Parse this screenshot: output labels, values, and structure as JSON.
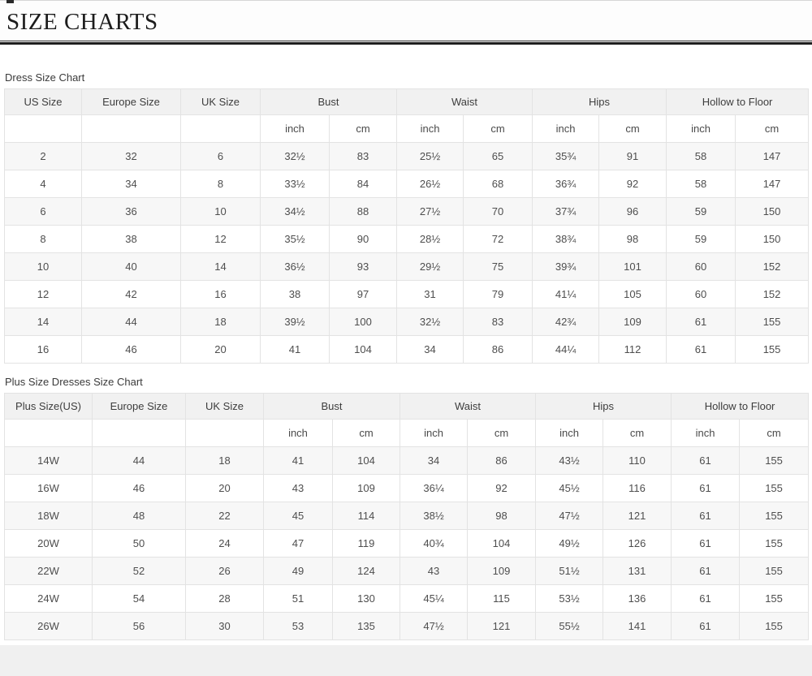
{
  "title": "SIZE CHARTS",
  "tables": [
    {
      "caption": "Dress Size Chart",
      "id_columns": [
        "US Size",
        "Europe Size",
        "UK Size"
      ],
      "measure_groups": [
        "Bust",
        "Waist",
        "Hips",
        "Hollow to Floor"
      ],
      "unit_labels": [
        "inch",
        "cm"
      ],
      "rows": [
        [
          "2",
          "32",
          "6",
          "32½",
          "83",
          "25½",
          "65",
          "35¾",
          "91",
          "58",
          "147"
        ],
        [
          "4",
          "34",
          "8",
          "33½",
          "84",
          "26½",
          "68",
          "36¾",
          "92",
          "58",
          "147"
        ],
        [
          "6",
          "36",
          "10",
          "34½",
          "88",
          "27½",
          "70",
          "37¾",
          "96",
          "59",
          "150"
        ],
        [
          "8",
          "38",
          "12",
          "35½",
          "90",
          "28½",
          "72",
          "38¾",
          "98",
          "59",
          "150"
        ],
        [
          "10",
          "40",
          "14",
          "36½",
          "93",
          "29½",
          "75",
          "39¾",
          "101",
          "60",
          "152"
        ],
        [
          "12",
          "42",
          "16",
          "38",
          "97",
          "31",
          "79",
          "41¼",
          "105",
          "60",
          "152"
        ],
        [
          "14",
          "44",
          "18",
          "39½",
          "100",
          "32½",
          "83",
          "42¾",
          "109",
          "61",
          "155"
        ],
        [
          "16",
          "46",
          "20",
          "41",
          "104",
          "34",
          "86",
          "44¼",
          "112",
          "61",
          "155"
        ]
      ]
    },
    {
      "caption": "Plus Size Dresses Size Chart",
      "id_columns": [
        "Plus Size(US)",
        "Europe Size",
        "UK Size"
      ],
      "measure_groups": [
        "Bust",
        "Waist",
        "Hips",
        "Hollow to Floor"
      ],
      "unit_labels": [
        "inch",
        "cm"
      ],
      "rows": [
        [
          "14W",
          "44",
          "18",
          "41",
          "104",
          "34",
          "86",
          "43½",
          "110",
          "61",
          "155"
        ],
        [
          "16W",
          "46",
          "20",
          "43",
          "109",
          "36¼",
          "92",
          "45½",
          "116",
          "61",
          "155"
        ],
        [
          "18W",
          "48",
          "22",
          "45",
          "114",
          "38½",
          "98",
          "47½",
          "121",
          "61",
          "155"
        ],
        [
          "20W",
          "50",
          "24",
          "47",
          "119",
          "40¾",
          "104",
          "49½",
          "126",
          "61",
          "155"
        ],
        [
          "22W",
          "52",
          "26",
          "49",
          "124",
          "43",
          "109",
          "51½",
          "131",
          "61",
          "155"
        ],
        [
          "24W",
          "54",
          "28",
          "51",
          "130",
          "45¼",
          "115",
          "53½",
          "136",
          "61",
          "155"
        ],
        [
          "26W",
          "56",
          "30",
          "53",
          "135",
          "47½",
          "121",
          "55½",
          "141",
          "61",
          "155"
        ]
      ]
    }
  ],
  "colors": {
    "header_bg": "#f1f1f1",
    "stripe_bg": "#f7f7f7",
    "border": "#e3e3e3",
    "rule": "#1d1d1d",
    "footer_band": "#f0f0f0"
  }
}
